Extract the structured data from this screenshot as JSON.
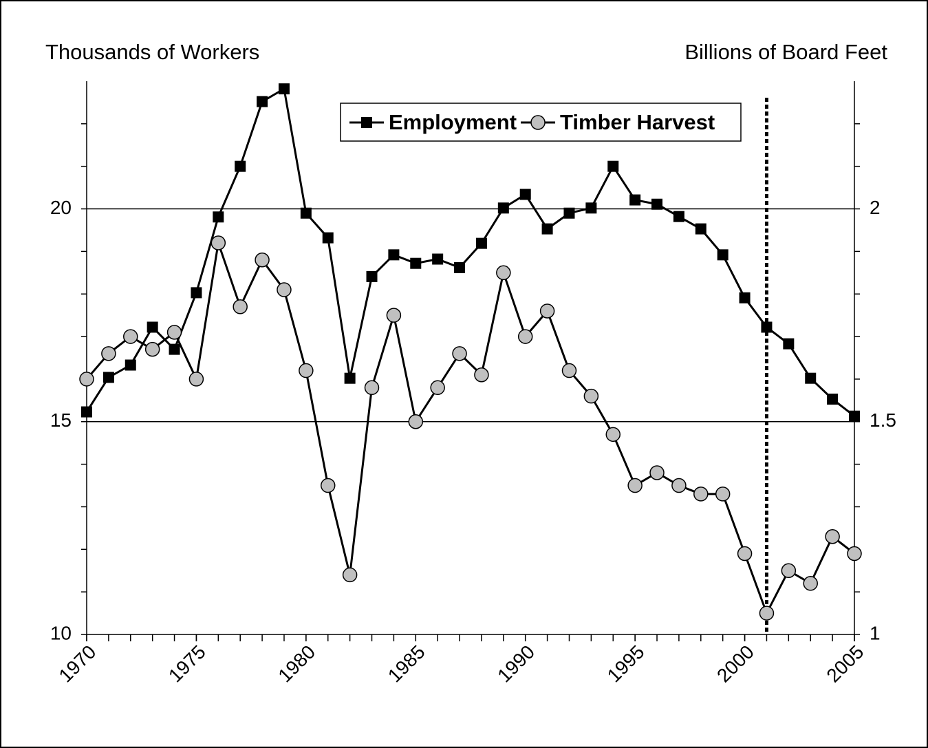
{
  "chart_data": {
    "type": "line",
    "y_label": "Thousands of Workers",
    "y2_label": "Billions of Board Feet",
    "x": [
      1970,
      1971,
      1972,
      1973,
      1974,
      1975,
      1976,
      1977,
      1978,
      1979,
      1980,
      1981,
      1982,
      1983,
      1984,
      1985,
      1986,
      1987,
      1988,
      1989,
      1990,
      1991,
      1992,
      1993,
      1994,
      1995,
      1996,
      1997,
      1998,
      1999,
      2000,
      2001,
      2002,
      2003,
      2004,
      2005
    ],
    "xlim": [
      1970,
      2005
    ],
    "xticks": [
      1970,
      1975,
      1980,
      1985,
      1990,
      1995,
      2000,
      2005
    ],
    "ylim": [
      10,
      23
    ],
    "yticks": [
      10,
      15,
      20
    ],
    "yminorticks": [
      11,
      12,
      13,
      14,
      16,
      17,
      18,
      19,
      21,
      22
    ],
    "y2lim": [
      1,
      2.3
    ],
    "y2ticks": [
      1,
      1.5,
      2
    ],
    "y2minorticks": [
      1.1,
      1.2,
      1.3,
      1.4,
      1.6,
      1.7,
      1.8,
      1.9,
      2.1,
      2.2
    ],
    "grid": true,
    "legend": "top",
    "reference_line_x": 2001,
    "series": [
      {
        "name": "Employment",
        "color": "#000000",
        "marker": "square",
        "values": [
          15.23,
          16.04,
          16.33,
          17.22,
          16.7,
          18.03,
          19.81,
          21.0,
          22.52,
          22.82,
          19.9,
          19.32,
          16.02,
          18.41,
          18.92,
          18.72,
          18.82,
          18.62,
          19.19,
          20.02,
          20.34,
          19.53,
          19.9,
          20.02,
          21.0,
          20.21,
          20.11,
          19.82,
          19.53,
          18.92,
          17.91,
          17.22,
          16.83,
          16.02,
          15.53,
          15.13
        ]
      },
      {
        "name": "Timber Harvest",
        "color": "#c0c0c0",
        "marker": "circle",
        "axis": "y2",
        "values": [
          1.6,
          1.66,
          1.7,
          1.67,
          1.71,
          1.6,
          1.92,
          1.77,
          1.88,
          1.81,
          1.62,
          1.35,
          1.14,
          1.58,
          1.75,
          1.5,
          1.58,
          1.66,
          1.61,
          1.85,
          1.7,
          1.76,
          1.62,
          1.56,
          1.47,
          1.35,
          1.38,
          1.35,
          1.33,
          1.33,
          1.19,
          1.05,
          1.15,
          1.12,
          1.23,
          1.19
        ]
      }
    ]
  }
}
